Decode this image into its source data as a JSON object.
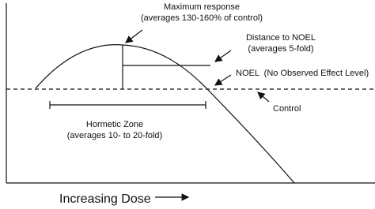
{
  "annotations": {
    "max_response": "Maximum response",
    "max_response_note": "(averages 130-160% of control)",
    "distance": "Distance to NOEL",
    "distance_note": "(averages 5-fold)",
    "noel": "NOEL  (No Observed Effect Level)",
    "control": "Control",
    "zone": "Hormetic Zone",
    "zone_note": "(averages 10- to 20-fold)"
  },
  "x_axis_label": "Increasing Dose"
}
